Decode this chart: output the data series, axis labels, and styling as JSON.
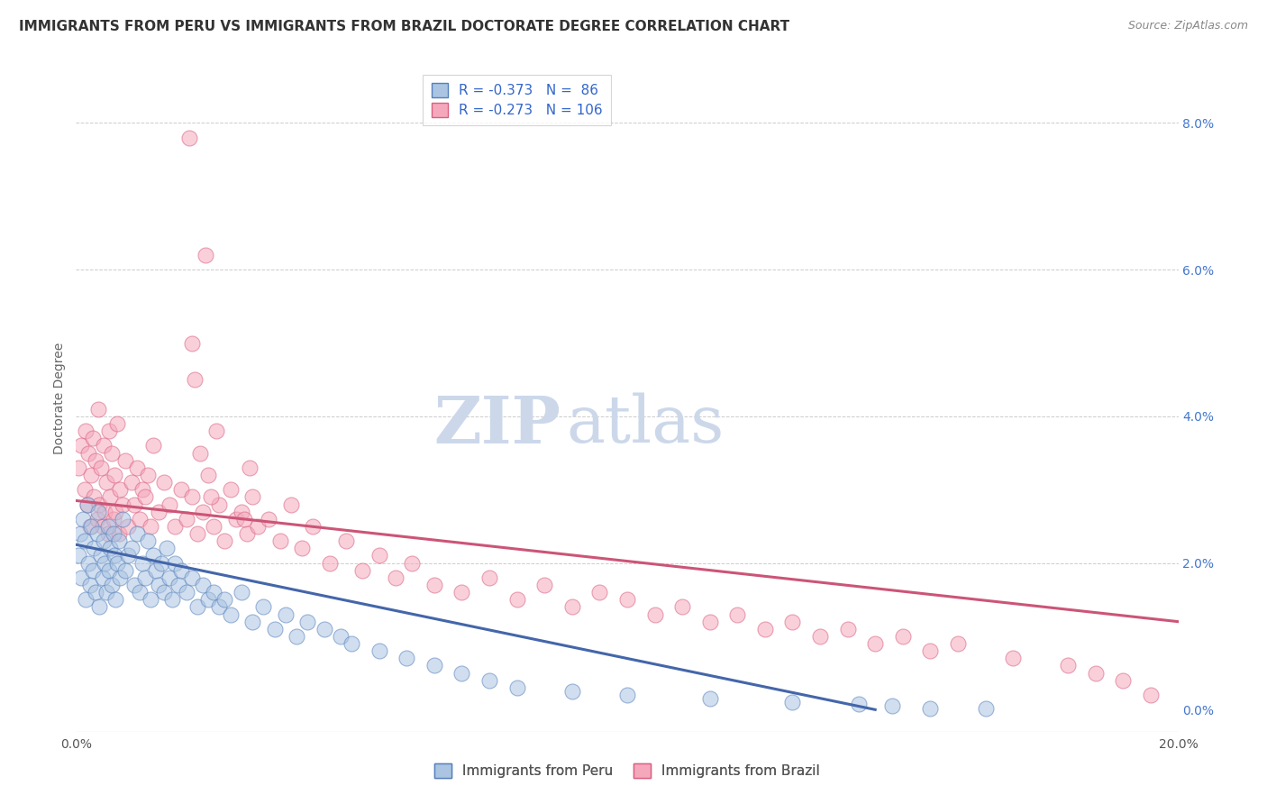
{
  "title": "IMMIGRANTS FROM PERU VS IMMIGRANTS FROM BRAZIL DOCTORATE DEGREE CORRELATION CHART",
  "source": "Source: ZipAtlas.com",
  "xlabel_peru": "Immigrants from Peru",
  "xlabel_brazil": "Immigrants from Brazil",
  "ylabel": "Doctorate Degree",
  "xlim": [
    0.0,
    20.0
  ],
  "ylim": [
    -0.3,
    8.8
  ],
  "yticks_right": [
    0.0,
    2.0,
    4.0,
    6.0,
    8.0
  ],
  "peru_R": -0.373,
  "peru_N": 86,
  "brazil_R": -0.273,
  "brazil_N": 106,
  "peru_color": "#aac4e2",
  "brazil_color": "#f5a8bc",
  "peru_edge_color": "#5580bb",
  "brazil_edge_color": "#d96080",
  "peru_line_color": "#4466aa",
  "brazil_line_color": "#cc5577",
  "watermark_zip": "ZIP",
  "watermark_atlas": "atlas",
  "watermark_color": "#ccd8ea",
  "title_fontsize": 11,
  "source_fontsize": 9,
  "legend_fontsize": 11,
  "peru_trend_x0": 0.0,
  "peru_trend_y0": 2.25,
  "peru_trend_x1": 14.5,
  "peru_trend_y1": 0.0,
  "brazil_trend_x0": 0.0,
  "brazil_trend_y0": 2.85,
  "brazil_trend_x1": 20.0,
  "brazil_trend_y1": 1.2,
  "peru_scatter_x": [
    0.05,
    0.08,
    0.1,
    0.12,
    0.15,
    0.18,
    0.2,
    0.22,
    0.25,
    0.28,
    0.3,
    0.32,
    0.35,
    0.38,
    0.4,
    0.42,
    0.45,
    0.48,
    0.5,
    0.52,
    0.55,
    0.58,
    0.6,
    0.62,
    0.65,
    0.68,
    0.7,
    0.72,
    0.75,
    0.78,
    0.8,
    0.85,
    0.9,
    0.95,
    1.0,
    1.05,
    1.1,
    1.15,
    1.2,
    1.25,
    1.3,
    1.35,
    1.4,
    1.45,
    1.5,
    1.55,
    1.6,
    1.65,
    1.7,
    1.75,
    1.8,
    1.85,
    1.9,
    2.0,
    2.1,
    2.2,
    2.3,
    2.4,
    2.5,
    2.6,
    2.7,
    2.8,
    3.0,
    3.2,
    3.4,
    3.6,
    3.8,
    4.0,
    4.2,
    4.5,
    4.8,
    5.0,
    5.5,
    6.0,
    6.5,
    7.0,
    7.5,
    8.0,
    9.0,
    10.0,
    11.5,
    13.0,
    14.2,
    14.8,
    15.5,
    16.5
  ],
  "peru_scatter_y": [
    2.1,
    2.4,
    1.8,
    2.6,
    2.3,
    1.5,
    2.8,
    2.0,
    1.7,
    2.5,
    1.9,
    2.2,
    1.6,
    2.4,
    2.7,
    1.4,
    2.1,
    1.8,
    2.3,
    2.0,
    1.6,
    2.5,
    1.9,
    2.2,
    1.7,
    2.4,
    2.1,
    1.5,
    2.0,
    2.3,
    1.8,
    2.6,
    1.9,
    2.1,
    2.2,
    1.7,
    2.4,
    1.6,
    2.0,
    1.8,
    2.3,
    1.5,
    2.1,
    1.9,
    1.7,
    2.0,
    1.6,
    2.2,
    1.8,
    1.5,
    2.0,
    1.7,
    1.9,
    1.6,
    1.8,
    1.4,
    1.7,
    1.5,
    1.6,
    1.4,
    1.5,
    1.3,
    1.6,
    1.2,
    1.4,
    1.1,
    1.3,
    1.0,
    1.2,
    1.1,
    1.0,
    0.9,
    0.8,
    0.7,
    0.6,
    0.5,
    0.4,
    0.3,
    0.25,
    0.2,
    0.15,
    0.1,
    0.08,
    0.05,
    0.02,
    0.01
  ],
  "brazil_scatter_x": [
    0.05,
    0.1,
    0.15,
    0.18,
    0.2,
    0.22,
    0.25,
    0.28,
    0.3,
    0.32,
    0.35,
    0.38,
    0.4,
    0.42,
    0.45,
    0.48,
    0.5,
    0.52,
    0.55,
    0.58,
    0.6,
    0.62,
    0.65,
    0.68,
    0.7,
    0.72,
    0.75,
    0.78,
    0.8,
    0.85,
    0.9,
    0.95,
    1.0,
    1.05,
    1.1,
    1.15,
    1.2,
    1.25,
    1.3,
    1.35,
    1.4,
    1.5,
    1.6,
    1.7,
    1.8,
    1.9,
    2.0,
    2.1,
    2.2,
    2.3,
    2.4,
    2.5,
    2.6,
    2.7,
    2.8,
    2.9,
    3.0,
    3.1,
    3.2,
    3.3,
    3.5,
    3.7,
    3.9,
    4.1,
    4.3,
    4.6,
    4.9,
    5.2,
    5.5,
    5.8,
    6.1,
    6.5,
    7.0,
    7.5,
    8.0,
    8.5,
    9.0,
    9.5,
    10.0,
    10.5,
    11.0,
    11.5,
    12.0,
    12.5,
    13.0,
    13.5,
    14.0,
    14.5,
    15.0,
    15.5,
    16.0,
    17.0,
    18.0,
    18.5,
    19.0,
    19.5,
    2.05,
    2.15,
    2.25,
    2.35,
    2.45,
    2.55,
    2.1,
    3.05,
    3.15
  ],
  "brazil_scatter_y": [
    3.3,
    3.6,
    3.0,
    3.8,
    2.8,
    3.5,
    2.5,
    3.2,
    3.7,
    2.9,
    3.4,
    2.6,
    4.1,
    2.8,
    3.3,
    2.5,
    3.6,
    2.7,
    3.1,
    2.4,
    3.8,
    2.9,
    3.5,
    2.6,
    3.2,
    2.7,
    3.9,
    2.4,
    3.0,
    2.8,
    3.4,
    2.5,
    3.1,
    2.8,
    3.3,
    2.6,
    3.0,
    2.9,
    3.2,
    2.5,
    3.6,
    2.7,
    3.1,
    2.8,
    2.5,
    3.0,
    2.6,
    2.9,
    2.4,
    2.7,
    3.2,
    2.5,
    2.8,
    2.3,
    3.0,
    2.6,
    2.7,
    2.4,
    2.9,
    2.5,
    2.6,
    2.3,
    2.8,
    2.2,
    2.5,
    2.0,
    2.3,
    1.9,
    2.1,
    1.8,
    2.0,
    1.7,
    1.6,
    1.8,
    1.5,
    1.7,
    1.4,
    1.6,
    1.5,
    1.3,
    1.4,
    1.2,
    1.3,
    1.1,
    1.2,
    1.0,
    1.1,
    0.9,
    1.0,
    0.8,
    0.9,
    0.7,
    0.6,
    0.5,
    0.4,
    0.2,
    7.8,
    4.5,
    3.5,
    6.2,
    2.9,
    3.8,
    5.0,
    2.6,
    3.3
  ]
}
